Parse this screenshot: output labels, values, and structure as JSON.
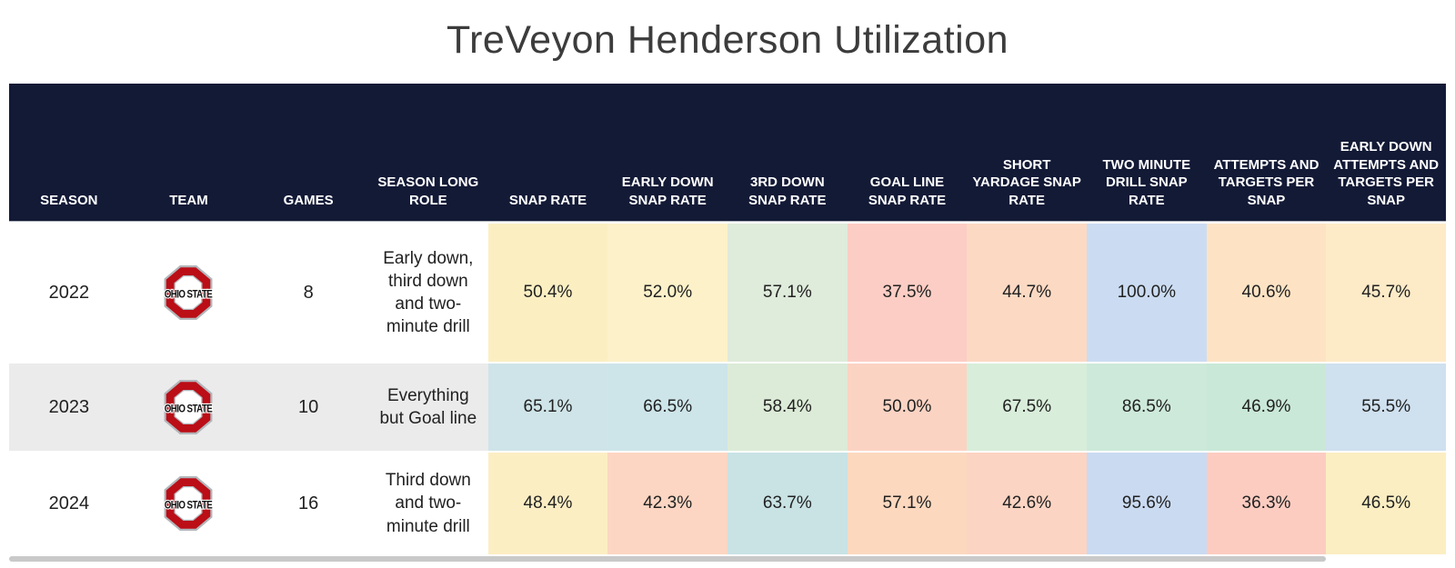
{
  "title": "TreVeyon Henderson Utilization",
  "colors": {
    "header_bg": "#131a36",
    "header_text": "#ffffff",
    "row_bg_default": "#ffffff",
    "row_bg_alt": "#ebebeb",
    "scrollbar": "#c9c9c9",
    "logo_red": "#bb0e17",
    "logo_gray": "#b2b6ba",
    "logo_text_color": "#111111"
  },
  "logo": {
    "team": "Ohio State",
    "text": "OHIO STATE"
  },
  "table": {
    "columns": [
      "SEASON",
      "TEAM",
      "GAMES",
      "SEASON LONG ROLE",
      "SNAP RATE",
      "EARLY DOWN SNAP RATE",
      "3RD DOWN SNAP RATE",
      "GOAL LINE SNAP RATE",
      "SHORT YARDAGE SNAP RATE",
      "TWO MINUTE DRILL SNAP RATE",
      "ATTEMPTS AND TARGETS PER SNAP",
      "EARLY DOWN ATTEMPTS AND TARGETS PER SNAP"
    ],
    "rows": [
      {
        "season": "2022",
        "team": "Ohio State",
        "games": "8",
        "role": "Early down, third down and two-minute drill",
        "row_bg": "#ffffff",
        "stats": [
          {
            "value": "50.4%",
            "bg": "#fbefc2"
          },
          {
            "value": "52.0%",
            "bg": "#fcf1c9"
          },
          {
            "value": "57.1%",
            "bg": "#dfebdb"
          },
          {
            "value": "37.5%",
            "bg": "#fccdc4"
          },
          {
            "value": "44.7%",
            "bg": "#fcd9c3"
          },
          {
            "value": "100.0%",
            "bg": "#cbdcf2"
          },
          {
            "value": "40.6%",
            "bg": "#fde3c4"
          },
          {
            "value": "45.7%",
            "bg": "#fdeac7"
          }
        ]
      },
      {
        "season": "2023",
        "team": "Ohio State",
        "games": "10",
        "role": "Everything but Goal line",
        "row_bg": "#ebebeb",
        "stats": [
          {
            "value": "65.1%",
            "bg": "#cfe4e8"
          },
          {
            "value": "66.5%",
            "bg": "#cde5e9"
          },
          {
            "value": "58.4%",
            "bg": "#dcebd7"
          },
          {
            "value": "50.0%",
            "bg": "#fbd3c3"
          },
          {
            "value": "67.5%",
            "bg": "#d8edda"
          },
          {
            "value": "86.5%",
            "bg": "#cde9da"
          },
          {
            "value": "46.9%",
            "bg": "#c9e8d7"
          },
          {
            "value": "55.5%",
            "bg": "#cfe0ef"
          }
        ]
      },
      {
        "season": "2024",
        "team": "Ohio State",
        "games": "16",
        "role": "Third down and two-minute drill",
        "row_bg": "#ffffff",
        "stats": [
          {
            "value": "48.4%",
            "bg": "#fceec3"
          },
          {
            "value": "42.3%",
            "bg": "#fcd6c2"
          },
          {
            "value": "63.7%",
            "bg": "#c9e2e4"
          },
          {
            "value": "57.1%",
            "bg": "#fcd8bf"
          },
          {
            "value": "42.6%",
            "bg": "#fcd4c3"
          },
          {
            "value": "95.6%",
            "bg": "#cadaf1"
          },
          {
            "value": "36.3%",
            "bg": "#fcccc1"
          },
          {
            "value": "46.5%",
            "bg": "#fbeec2"
          }
        ]
      }
    ]
  },
  "chart_data": {
    "type": "table",
    "title": "TreVeyon Henderson Utilization",
    "columns": [
      "SEASON",
      "TEAM",
      "GAMES",
      "SEASON LONG ROLE",
      "SNAP RATE",
      "EARLY DOWN SNAP RATE",
      "3RD DOWN SNAP RATE",
      "GOAL LINE SNAP RATE",
      "SHORT YARDAGE SNAP RATE",
      "TWO MINUTE DRILL SNAP RATE",
      "ATTEMPTS AND TARGETS PER SNAP",
      "EARLY DOWN ATTEMPTS AND TARGETS PER SNAP"
    ],
    "rows": [
      [
        "2022",
        "Ohio State",
        "8",
        "Early down, third down and two-minute drill",
        "50.4%",
        "52.0%",
        "57.1%",
        "37.5%",
        "44.7%",
        "100.0%",
        "40.6%",
        "45.7%"
      ],
      [
        "2023",
        "Ohio State",
        "10",
        "Everything but Goal line",
        "65.1%",
        "66.5%",
        "58.4%",
        "50.0%",
        "67.5%",
        "86.5%",
        "46.9%",
        "55.5%"
      ],
      [
        "2024",
        "Ohio State",
        "16",
        "Third down and two-minute drill",
        "48.4%",
        "42.3%",
        "63.7%",
        "57.1%",
        "42.6%",
        "95.6%",
        "36.3%",
        "46.5%"
      ]
    ],
    "layout_hints": {
      "heatmap_coloring": "red-low to yellow-mid to green/blue-high per column",
      "header_style": "dark navy background, white bold uppercase text, bottom-aligned",
      "alt_row_shading": "2023 row label columns shaded light gray"
    }
  }
}
